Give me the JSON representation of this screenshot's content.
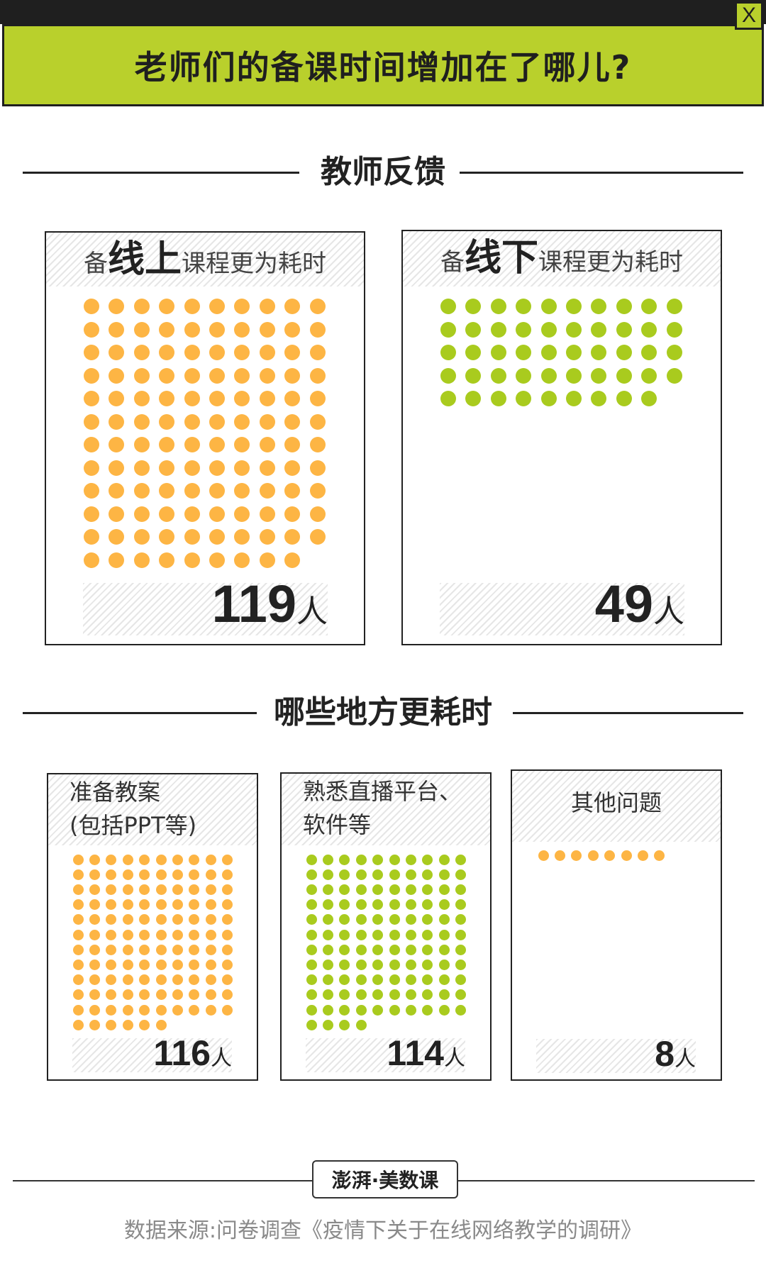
{
  "header": {
    "title": "老师们的备课时间增加在了哪儿?",
    "close_label": "X"
  },
  "sections": [
    {
      "title": "教师反馈"
    },
    {
      "title": "哪些地方更耗时"
    }
  ],
  "colors": {
    "accent_green": "#b9d02c",
    "dot_orange": "#fdb544",
    "dot_green": "#a9cb1e"
  },
  "cards_top": [
    {
      "prefix": "备",
      "highlight": "线上",
      "suffix": "课程更为耗时",
      "count": "119",
      "unit": "人"
    },
    {
      "prefix": "备",
      "highlight": "线下",
      "suffix": "课程更为耗时",
      "count": "49",
      "unit": "人"
    }
  ],
  "cards_bottom": [
    {
      "line1": "准备教案",
      "line2": "(包括PPT等)",
      "count": "116",
      "unit": "人"
    },
    {
      "line1": "熟悉直播平台、",
      "line2": "软件等",
      "count": "114",
      "unit": "人"
    },
    {
      "line1": "其他问题",
      "line2": "",
      "count": "8",
      "unit": "人"
    }
  ],
  "chart_data": [
    {
      "type": "bar",
      "title": "教师反馈",
      "categories": [
        "备线上课程更为耗时",
        "备线下课程更为耗时"
      ],
      "values": [
        119,
        49
      ],
      "unit": "人"
    },
    {
      "type": "bar",
      "title": "哪些地方更耗时",
      "categories": [
        "准备教案(包括PPT等)",
        "熟悉直播平台、软件等",
        "其他问题"
      ],
      "values": [
        116,
        114,
        8
      ],
      "unit": "人"
    }
  ],
  "footer": {
    "logo_text": "澎湃·美数课",
    "source": "数据来源:问卷调查《疫情下关于在线网络教学的调研》"
  }
}
